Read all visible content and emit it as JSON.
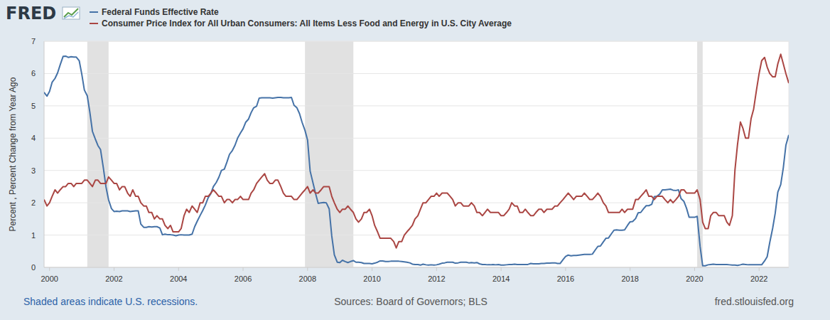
{
  "chart_data": {
    "type": "line",
    "logo": "FRED",
    "y_label": "Percent , Percent Change from Year Ago",
    "footnote": "Shaded areas indicate U.S. recessions.",
    "source": "Sources: Board of Governors; BLS",
    "site": "fred.stlouisfed.org",
    "legend": "top-left",
    "grid": true,
    "xlim": [
      1999.83,
      2022.92
    ],
    "xticks": [
      2000,
      2002,
      2004,
      2006,
      2008,
      2010,
      2012,
      2014,
      2016,
      2018,
      2020,
      2022
    ],
    "ylim": [
      0,
      7
    ],
    "yticks": [
      0,
      1,
      2,
      3,
      4,
      5,
      6,
      7
    ],
    "recessions": [
      [
        2001.17,
        2001.83
      ],
      [
        2007.92,
        2009.42
      ],
      [
        2020.08,
        2020.25
      ]
    ],
    "x": [
      1999.83,
      1999.92,
      2000,
      2000.08,
      2000.17,
      2000.25,
      2000.33,
      2000.42,
      2000.5,
      2000.58,
      2000.67,
      2000.75,
      2000.83,
      2000.92,
      2001,
      2001.08,
      2001.17,
      2001.25,
      2001.33,
      2001.42,
      2001.5,
      2001.58,
      2001.67,
      2001.75,
      2001.83,
      2001.92,
      2002,
      2002.08,
      2002.17,
      2002.25,
      2002.33,
      2002.42,
      2002.5,
      2002.58,
      2002.67,
      2002.75,
      2002.83,
      2002.92,
      2003,
      2003.08,
      2003.17,
      2003.25,
      2003.33,
      2003.42,
      2003.5,
      2003.58,
      2003.67,
      2003.75,
      2003.83,
      2003.92,
      2004,
      2004.08,
      2004.17,
      2004.25,
      2004.33,
      2004.42,
      2004.5,
      2004.58,
      2004.67,
      2004.75,
      2004.83,
      2004.92,
      2005,
      2005.08,
      2005.17,
      2005.25,
      2005.33,
      2005.42,
      2005.5,
      2005.58,
      2005.67,
      2005.75,
      2005.83,
      2005.92,
      2006,
      2006.08,
      2006.17,
      2006.25,
      2006.33,
      2006.42,
      2006.5,
      2006.58,
      2006.67,
      2006.75,
      2006.83,
      2006.92,
      2007,
      2007.08,
      2007.17,
      2007.25,
      2007.33,
      2007.42,
      2007.5,
      2007.58,
      2007.67,
      2007.75,
      2007.83,
      2007.92,
      2008,
      2008.08,
      2008.17,
      2008.25,
      2008.33,
      2008.42,
      2008.5,
      2008.58,
      2008.67,
      2008.75,
      2008.83,
      2008.92,
      2009,
      2009.08,
      2009.17,
      2009.25,
      2009.33,
      2009.42,
      2009.5,
      2009.58,
      2009.67,
      2009.75,
      2009.83,
      2009.92,
      2010,
      2010.08,
      2010.17,
      2010.25,
      2010.33,
      2010.42,
      2010.5,
      2010.58,
      2010.67,
      2010.75,
      2010.83,
      2010.92,
      2011,
      2011.08,
      2011.17,
      2011.25,
      2011.33,
      2011.42,
      2011.5,
      2011.58,
      2011.67,
      2011.75,
      2011.83,
      2011.92,
      2012,
      2012.08,
      2012.17,
      2012.25,
      2012.33,
      2012.42,
      2012.5,
      2012.58,
      2012.67,
      2012.75,
      2012.83,
      2012.92,
      2013,
      2013.08,
      2013.17,
      2013.25,
      2013.33,
      2013.42,
      2013.5,
      2013.58,
      2013.67,
      2013.75,
      2013.83,
      2013.92,
      2014,
      2014.08,
      2014.17,
      2014.25,
      2014.33,
      2014.42,
      2014.5,
      2014.58,
      2014.67,
      2014.75,
      2014.83,
      2014.92,
      2015,
      2015.08,
      2015.17,
      2015.25,
      2015.33,
      2015.42,
      2015.5,
      2015.58,
      2015.67,
      2015.75,
      2015.83,
      2015.92,
      2016,
      2016.08,
      2016.17,
      2016.25,
      2016.33,
      2016.42,
      2016.5,
      2016.58,
      2016.67,
      2016.75,
      2016.83,
      2016.92,
      2017,
      2017.08,
      2017.17,
      2017.25,
      2017.33,
      2017.42,
      2017.5,
      2017.58,
      2017.67,
      2017.75,
      2017.83,
      2017.92,
      2018,
      2018.08,
      2018.17,
      2018.25,
      2018.33,
      2018.42,
      2018.5,
      2018.58,
      2018.67,
      2018.75,
      2018.83,
      2018.92,
      2019,
      2019.08,
      2019.17,
      2019.25,
      2019.33,
      2019.42,
      2019.5,
      2019.58,
      2019.67,
      2019.75,
      2019.83,
      2019.92,
      2020,
      2020.08,
      2020.17,
      2020.25,
      2020.33,
      2020.42,
      2020.5,
      2020.58,
      2020.67,
      2020.75,
      2020.83,
      2020.92,
      2021,
      2021.08,
      2021.17,
      2021.25,
      2021.33,
      2021.42,
      2021.5,
      2021.58,
      2021.67,
      2021.75,
      2021.83,
      2021.92,
      2022,
      2022.08,
      2022.17,
      2022.25,
      2022.33,
      2022.42,
      2022.5,
      2022.58,
      2022.67,
      2022.75,
      2022.83,
      2022.92
    ],
    "series": [
      {
        "name": "Federal Funds Effective Rate",
        "color": "#4572a7",
        "values": [
          5.42,
          5.3,
          5.45,
          5.73,
          5.85,
          6.02,
          6.27,
          6.53,
          6.54,
          6.5,
          6.52,
          6.51,
          6.51,
          6.4,
          5.98,
          5.49,
          5.31,
          4.8,
          4.21,
          3.97,
          3.77,
          3.65,
          3.07,
          2.49,
          2.09,
          1.82,
          1.73,
          1.74,
          1.73,
          1.75,
          1.75,
          1.75,
          1.73,
          1.74,
          1.75,
          1.75,
          1.34,
          1.24,
          1.24,
          1.26,
          1.25,
          1.26,
          1.26,
          1.22,
          1.01,
          1.03,
          1.01,
          1.01,
          1.0,
          0.98,
          1.0,
          1.01,
          1.0,
          1.0,
          1.0,
          1.03,
          1.26,
          1.43,
          1.61,
          1.76,
          1.93,
          2.16,
          2.28,
          2.5,
          2.63,
          2.79,
          3.0,
          3.04,
          3.26,
          3.5,
          3.62,
          3.78,
          4.0,
          4.16,
          4.29,
          4.49,
          4.59,
          4.79,
          4.94,
          4.99,
          5.24,
          5.25,
          5.25,
          5.25,
          5.25,
          5.24,
          5.25,
          5.26,
          5.26,
          5.25,
          5.25,
          5.25,
          5.26,
          5.02,
          4.94,
          4.76,
          4.49,
          4.24,
          3.94,
          2.98,
          2.61,
          2.28,
          1.98,
          2.0,
          2.01,
          2.0,
          1.81,
          0.97,
          0.39,
          0.16,
          0.15,
          0.22,
          0.18,
          0.15,
          0.18,
          0.21,
          0.16,
          0.16,
          0.15,
          0.12,
          0.12,
          0.12,
          0.11,
          0.13,
          0.16,
          0.2,
          0.2,
          0.18,
          0.18,
          0.19,
          0.19,
          0.19,
          0.19,
          0.18,
          0.17,
          0.16,
          0.14,
          0.1,
          0.09,
          0.09,
          0.07,
          0.1,
          0.08,
          0.07,
          0.08,
          0.07,
          0.08,
          0.1,
          0.13,
          0.14,
          0.16,
          0.16,
          0.16,
          0.13,
          0.14,
          0.16,
          0.16,
          0.16,
          0.14,
          0.15,
          0.14,
          0.15,
          0.11,
          0.09,
          0.09,
          0.08,
          0.08,
          0.09,
          0.08,
          0.09,
          0.07,
          0.07,
          0.08,
          0.09,
          0.09,
          0.1,
          0.09,
          0.09,
          0.09,
          0.09,
          0.09,
          0.12,
          0.11,
          0.11,
          0.11,
          0.12,
          0.12,
          0.13,
          0.13,
          0.14,
          0.14,
          0.12,
          0.12,
          0.24,
          0.34,
          0.38,
          0.36,
          0.37,
          0.37,
          0.38,
          0.39,
          0.4,
          0.4,
          0.4,
          0.41,
          0.54,
          0.65,
          0.66,
          0.79,
          0.9,
          0.91,
          1.04,
          1.15,
          1.16,
          1.15,
          1.15,
          1.16,
          1.3,
          1.41,
          1.42,
          1.51,
          1.69,
          1.7,
          1.82,
          1.91,
          1.91,
          1.95,
          2.19,
          2.2,
          2.27,
          2.4,
          2.4,
          2.41,
          2.42,
          2.39,
          2.38,
          2.4,
          2.13,
          2.04,
          1.83,
          1.55,
          1.55,
          1.55,
          1.58,
          0.65,
          0.05,
          0.05,
          0.08,
          0.09,
          0.1,
          0.09,
          0.09,
          0.09,
          0.09,
          0.09,
          0.08,
          0.07,
          0.07,
          0.06,
          0.08,
          0.1,
          0.09,
          0.08,
          0.08,
          0.08,
          0.08,
          0.08,
          0.08,
          0.2,
          0.33,
          0.77,
          1.21,
          1.68,
          2.33,
          2.56,
          3.08,
          3.78,
          4.1
        ]
      },
      {
        "name": "Consumer Price Index for All Urban Consumers: All Items Less Food and Energy in U.S. City Average",
        "color": "#aa4643",
        "values": [
          2.1,
          1.9,
          2.0,
          2.2,
          2.4,
          2.3,
          2.4,
          2.5,
          2.5,
          2.6,
          2.6,
          2.5,
          2.6,
          2.6,
          2.6,
          2.7,
          2.7,
          2.6,
          2.5,
          2.7,
          2.7,
          2.6,
          2.6,
          2.6,
          2.8,
          2.7,
          2.6,
          2.6,
          2.4,
          2.5,
          2.5,
          2.3,
          2.2,
          2.4,
          2.2,
          2.2,
          2.0,
          1.9,
          1.9,
          1.7,
          1.7,
          1.5,
          1.6,
          1.5,
          1.5,
          1.3,
          1.2,
          1.3,
          1.1,
          1.1,
          1.1,
          1.2,
          1.6,
          1.8,
          1.7,
          1.9,
          1.8,
          1.7,
          2.0,
          2.0,
          2.2,
          2.2,
          2.3,
          2.4,
          2.3,
          2.2,
          2.2,
          2.0,
          2.1,
          2.1,
          2.0,
          2.1,
          2.1,
          2.2,
          2.1,
          2.1,
          2.1,
          2.3,
          2.4,
          2.6,
          2.7,
          2.8,
          2.9,
          2.7,
          2.6,
          2.6,
          2.7,
          2.7,
          2.5,
          2.3,
          2.2,
          2.2,
          2.2,
          2.1,
          2.1,
          2.2,
          2.3,
          2.4,
          2.5,
          2.3,
          2.4,
          2.3,
          2.3,
          2.4,
          2.5,
          2.5,
          2.5,
          2.2,
          2.0,
          1.8,
          1.7,
          1.8,
          1.8,
          1.9,
          1.8,
          1.7,
          1.5,
          1.4,
          1.5,
          1.7,
          1.7,
          1.8,
          1.6,
          1.3,
          1.1,
          0.9,
          0.9,
          0.9,
          0.9,
          0.9,
          0.8,
          0.6,
          0.8,
          0.8,
          1.0,
          1.1,
          1.2,
          1.3,
          1.5,
          1.6,
          1.8,
          2.0,
          2.0,
          2.1,
          2.2,
          2.2,
          2.3,
          2.2,
          2.3,
          2.3,
          2.3,
          2.2,
          2.1,
          1.9,
          2.0,
          2.0,
          1.9,
          1.9,
          1.9,
          2.0,
          1.9,
          1.7,
          1.7,
          1.6,
          1.7,
          1.8,
          1.7,
          1.7,
          1.7,
          1.7,
          1.6,
          1.6,
          1.7,
          1.8,
          2.0,
          1.9,
          1.9,
          1.7,
          1.7,
          1.8,
          1.7,
          1.6,
          1.6,
          1.7,
          1.8,
          1.8,
          1.7,
          1.8,
          1.8,
          1.8,
          1.9,
          1.9,
          2.0,
          2.1,
          2.2,
          2.3,
          2.2,
          2.1,
          2.2,
          2.2,
          2.2,
          2.3,
          2.2,
          2.1,
          2.1,
          2.2,
          2.3,
          2.2,
          2.0,
          1.9,
          1.7,
          1.7,
          1.7,
          1.7,
          1.7,
          1.8,
          1.7,
          1.8,
          1.8,
          1.8,
          2.1,
          2.1,
          2.2,
          2.3,
          2.4,
          2.2,
          2.2,
          2.1,
          2.2,
          2.2,
          2.2,
          2.1,
          2.0,
          2.1,
          2.0,
          2.1,
          2.2,
          2.4,
          2.4,
          2.3,
          2.3,
          2.3,
          2.3,
          2.4,
          2.1,
          1.4,
          1.2,
          1.2,
          1.6,
          1.7,
          1.7,
          1.6,
          1.6,
          1.6,
          1.4,
          1.3,
          1.6,
          3.0,
          3.8,
          4.5,
          4.3,
          4.0,
          4.0,
          4.6,
          4.9,
          5.5,
          6.0,
          6.4,
          6.5,
          6.2,
          6.0,
          5.9,
          5.9,
          6.3,
          6.6,
          6.3,
          6.0,
          5.7
        ]
      }
    ]
  }
}
